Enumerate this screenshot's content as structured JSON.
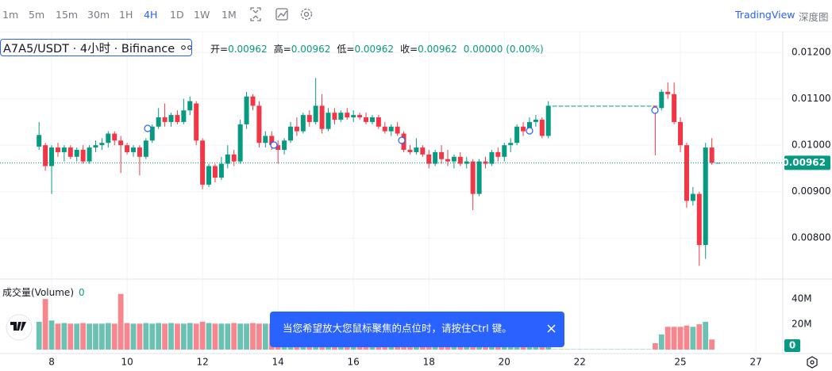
{
  "toolbar": {
    "intervals": [
      "1m",
      "5m",
      "15m",
      "30m",
      "1H",
      "4H",
      "1D",
      "1W",
      "1M"
    ],
    "active_interval": "4H",
    "links": [
      "TradingView",
      "深度图"
    ]
  },
  "toast": "当您希望放大您鼠标聚焦的点位时，请按住Ctrl 键。",
  "chart_data": {
    "type": "candlestick",
    "title": "A7A5/USDT · 4小时 · Bifinance",
    "ohlc_labels": [
      "开=",
      "高=",
      "低=",
      "收="
    ],
    "change_label": "0.00000 (0.00%)",
    "volume_title": "成交量(Volume)",
    "up_color": "#089981",
    "down_color": "#f23645",
    "grid": true,
    "ylim": [
      0.00715,
      0.01236
    ],
    "yticks": [
      {
        "value": 0.008,
        "label": "0.00800"
      },
      {
        "value": 0.009,
        "label": "0.00900"
      },
      {
        "value": 0.01,
        "label": "0.01000"
      },
      {
        "value": 0.011,
        "label": "0.01100"
      },
      {
        "value": 0.012,
        "label": "0.01200"
      }
    ],
    "volume_ylim": [
      0,
      52000000
    ],
    "volume_yticks": [
      {
        "value": 20000000,
        "label": "20M"
      },
      {
        "value": 40000000,
        "label": "40M"
      }
    ],
    "categories": [
      null,
      null,
      "8",
      null,
      null,
      null,
      null,
      null,
      null,
      null,
      null,
      null,
      null,
      null,
      "10",
      null,
      null,
      null,
      null,
      null,
      null,
      null,
      null,
      null,
      null,
      null,
      "12",
      null,
      null,
      null,
      null,
      null,
      null,
      null,
      null,
      null,
      null,
      null,
      "14",
      null,
      null,
      null,
      null,
      null,
      null,
      null,
      null,
      null,
      null,
      null,
      "16",
      null,
      null,
      null,
      null,
      null,
      null,
      null,
      null,
      null,
      null,
      null,
      "18",
      null,
      null,
      null,
      null,
      null,
      null,
      null,
      null,
      null,
      null,
      null,
      "20",
      null,
      null,
      null,
      null,
      null,
      null,
      null,
      null,
      null,
      null,
      null,
      "22",
      null,
      null,
      null,
      null,
      null,
      null,
      null,
      null,
      null,
      null,
      null,
      null,
      null,
      null,
      null,
      "25",
      null,
      null,
      null,
      null,
      null,
      null,
      null,
      null,
      null,
      null,
      null,
      "27",
      null,
      null
    ],
    "open": [
      0.00997,
      0.01,
      0.00955,
      0.00995,
      0.00985,
      0.00995,
      0.00975,
      0.0099,
      0.00965,
      0.00995,
      0.01,
      0.01005,
      0.01025,
      0.0101,
      0.01,
      0.00985,
      0.00995,
      0.00975,
      0.0101,
      0.0104,
      0.0106,
      0.0105,
      0.01065,
      0.0105,
      0.01075,
      0.0109,
      0.0101,
      0.00915,
      0.00955,
      0.0093,
      0.0096,
      0.0098,
      0.00965,
      0.01045,
      0.01105,
      0.01085,
      0.01005,
      0.0102,
      0.01,
      0.0099,
      0.0101,
      0.0104,
      0.0103,
      0.01065,
      0.0105,
      0.01085,
      0.01035,
      0.0107,
      0.01055,
      0.0107,
      0.0106,
      0.01065,
      0.0106,
      0.0105,
      0.0106,
      0.0104,
      0.0103,
      0.0104,
      0.01025,
      0.0099,
      0.00985,
      0.00995,
      0.0098,
      0.0096,
      0.00985,
      0.0097,
      0.00965,
      0.00975,
      0.0096,
      0.00965,
      0.00895,
      0.00965,
      0.0096,
      0.00985,
      0.00975,
      0.01,
      0.01005,
      0.0104,
      0.0103,
      0.0105,
      0.01055,
      0.0102,
      0.01085,
      0.01085,
      0.01085,
      0.01085,
      0.01085,
      0.01085,
      0.01085,
      0.01085,
      0.01085,
      0.01085,
      0.01085,
      0.01085,
      0.01085,
      0.01085,
      0.01085,
      0.01085,
      0.01085,
      0.0108,
      0.01115,
      0.0111,
      0.0105,
      0.01,
      0.0088,
      0.00895,
      0.00785,
      0.00995,
      0.00962,
      null,
      null,
      null,
      null,
      null,
      null,
      null,
      null
    ],
    "high": [
      0.0105,
      0.01005,
      0.01,
      0.01005,
      0.01,
      0.01,
      0.00995,
      0.01,
      0.01,
      0.0101,
      0.01015,
      0.0103,
      0.0103,
      0.0102,
      0.01005,
      0.01,
      0.01,
      0.01015,
      0.01045,
      0.0108,
      0.0109,
      0.0107,
      0.01075,
      0.011,
      0.01105,
      0.01095,
      0.01015,
      0.0096,
      0.0096,
      0.00975,
      0.01,
      0.0099,
      0.01055,
      0.01115,
      0.0111,
      0.01095,
      0.0103,
      0.0103,
      0.0101,
      0.01015,
      0.0105,
      0.0106,
      0.0107,
      0.01075,
      0.01145,
      0.0111,
      0.0108,
      0.0108,
      0.01075,
      0.0108,
      0.01075,
      0.0107,
      0.0107,
      0.01065,
      0.01065,
      0.0105,
      0.01045,
      0.0105,
      0.0103,
      0.01,
      0.01015,
      0.01,
      0.0099,
      0.0099,
      0.01,
      0.0099,
      0.0098,
      0.00985,
      0.00975,
      0.0097,
      0.0097,
      0.00975,
      0.0099,
      0.00995,
      0.01005,
      0.01015,
      0.01045,
      0.0105,
      0.0106,
      0.01065,
      0.0106,
      0.01095,
      0.01085,
      0.01085,
      0.01085,
      0.01085,
      0.01085,
      0.01085,
      0.01085,
      0.01085,
      0.01085,
      0.01085,
      0.01085,
      0.01085,
      0.01085,
      0.01085,
      0.01085,
      0.01085,
      0.01085,
      0.0112,
      0.01135,
      0.01135,
      0.0106,
      0.01005,
      0.0091,
      0.009,
      0.01005,
      0.01015,
      0.00962,
      null,
      null,
      null,
      null,
      null,
      null,
      null,
      null
    ],
    "low": [
      0.0099,
      0.00945,
      0.00895,
      0.00975,
      0.00965,
      0.0097,
      0.00965,
      0.0096,
      0.0096,
      0.00985,
      0.0099,
      0.00995,
      0.01,
      0.0094,
      0.0098,
      0.00975,
      0.00935,
      0.0097,
      0.01005,
      0.01035,
      0.0104,
      0.0104,
      0.01045,
      0.01045,
      0.01065,
      0.01,
      0.00905,
      0.0091,
      0.0092,
      0.00925,
      0.0095,
      0.00955,
      0.0096,
      0.01035,
      0.01075,
      0.00995,
      0.00995,
      0.0099,
      0.0096,
      0.0098,
      0.01005,
      0.0102,
      0.01025,
      0.0104,
      0.01045,
      0.01025,
      0.0103,
      0.01045,
      0.0105,
      0.01055,
      0.0105,
      0.01055,
      0.01045,
      0.01045,
      0.01035,
      0.01025,
      0.0102,
      0.0102,
      0.00985,
      0.0098,
      0.0098,
      0.00975,
      0.0095,
      0.00955,
      0.0096,
      0.00955,
      0.0095,
      0.00955,
      0.0095,
      0.0086,
      0.0089,
      0.0095,
      0.00955,
      0.00965,
      0.00965,
      0.00985,
      0.01,
      0.0102,
      0.01025,
      0.0104,
      0.01015,
      0.01015,
      0.01085,
      0.01085,
      0.01085,
      0.01085,
      0.01085,
      0.01085,
      0.01085,
      0.01085,
      0.01085,
      0.01085,
      0.01085,
      0.01085,
      0.01085,
      0.01085,
      0.01085,
      0.01085,
      0.00978,
      0.01075,
      0.011,
      0.01045,
      0.00985,
      0.00865,
      0.0087,
      0.0074,
      0.00755,
      0.00958,
      0.00962,
      null,
      null,
      null,
      null,
      null,
      null,
      null,
      null
    ],
    "close": [
      0.01022,
      0.00955,
      0.00995,
      0.00985,
      0.00995,
      0.00975,
      0.0099,
      0.00965,
      0.00995,
      0.01,
      0.01005,
      0.01025,
      0.0101,
      0.01,
      0.00985,
      0.00995,
      0.00975,
      0.0101,
      0.0104,
      0.0106,
      0.0105,
      0.01065,
      0.0105,
      0.01075,
      0.01095,
      0.0101,
      0.00915,
      0.00955,
      0.0093,
      0.0096,
      0.0098,
      0.00965,
      0.01045,
      0.01105,
      0.01085,
      0.01005,
      0.0102,
      0.01,
      0.0099,
      0.0101,
      0.0104,
      0.0103,
      0.01065,
      0.0105,
      0.01085,
      0.01035,
      0.0107,
      0.01055,
      0.0107,
      0.0106,
      0.01065,
      0.0106,
      0.0105,
      0.0106,
      0.0104,
      0.0103,
      0.0104,
      0.01025,
      0.0099,
      0.00985,
      0.00995,
      0.0098,
      0.0096,
      0.00985,
      0.0097,
      0.00965,
      0.00975,
      0.0096,
      0.00965,
      0.00895,
      0.00965,
      0.0096,
      0.00985,
      0.00975,
      0.01,
      0.01005,
      0.0104,
      0.0103,
      0.0105,
      0.01055,
      0.0102,
      0.01085,
      0.01085,
      0.01085,
      0.01085,
      0.01085,
      0.01085,
      0.01085,
      0.01085,
      0.01085,
      0.01085,
      0.01085,
      0.01085,
      0.01085,
      0.01085,
      0.01085,
      0.01085,
      0.01085,
      0.01083,
      0.01115,
      0.0111,
      0.0105,
      0.01,
      0.0088,
      0.00895,
      0.00785,
      0.00995,
      0.00962,
      0.00962,
      null,
      null,
      null,
      null,
      null,
      null,
      null,
      null
    ],
    "volume": [
      22000000,
      40000000,
      23000000,
      20500000,
      21000000,
      20500000,
      20500000,
      21000000,
      20500000,
      20500000,
      20500000,
      21000000,
      20500000,
      44000000,
      21000000,
      20500000,
      20500000,
      21000000,
      20500000,
      21000000,
      20500000,
      21000000,
      20500000,
      20500000,
      21000000,
      20500000,
      22000000,
      21000000,
      20500000,
      20500000,
      20500000,
      21000000,
      20500000,
      20500000,
      21000000,
      20500000,
      20500000,
      20500000,
      20500000,
      20500000,
      20500000,
      20500000,
      20500000,
      20500000,
      20500000,
      20500000,
      20500000,
      20500000,
      20500000,
      20500000,
      20500000,
      20500000,
      20500000,
      20500000,
      20500000,
      20500000,
      20500000,
      20500000,
      20500000,
      20500000,
      20500000,
      20500000,
      20500000,
      20500000,
      20500000,
      20500000,
      20500000,
      20500000,
      20500000,
      20500000,
      20500000,
      20500000,
      20500000,
      20500000,
      20500000,
      20500000,
      20500000,
      20500000,
      20500000,
      20500000,
      20500000,
      20500000,
      300000,
      300000,
      300000,
      300000,
      300000,
      300000,
      300000,
      300000,
      300000,
      300000,
      300000,
      300000,
      300000,
      300000,
      300000,
      300000,
      5000000,
      12000000,
      18000000,
      18000000,
      18000000,
      19000000,
      18000000,
      20000000,
      22000000,
      8000000,
      0,
      null,
      null,
      null,
      null,
      null,
      null,
      null,
      null
    ]
  }
}
